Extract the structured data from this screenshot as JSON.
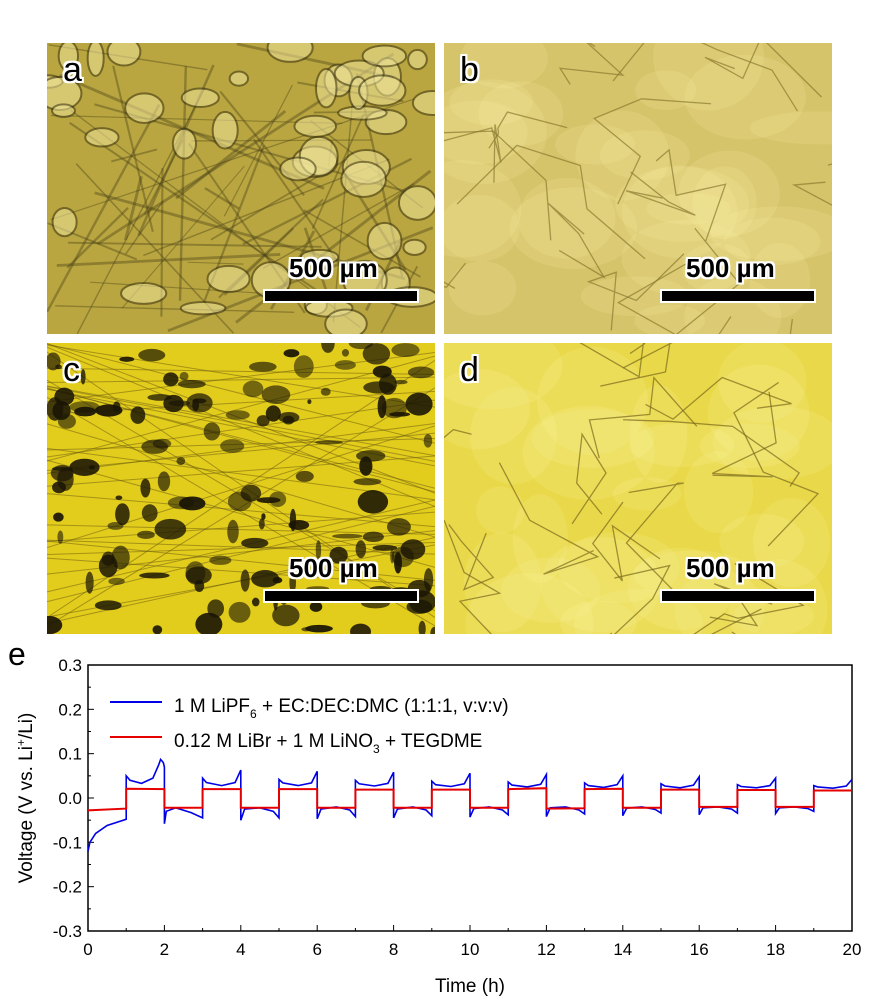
{
  "panels": [
    {
      "label": "a",
      "scale_bar": "500 µm",
      "tone": "#b9a640",
      "spot": "#3a3312",
      "style": "mottled"
    },
    {
      "label": "b",
      "scale_bar": "500 µm",
      "tone": "#d6c46a",
      "spot": "#8a7a30",
      "style": "grains"
    },
    {
      "label": "c",
      "scale_bar": "500 µm",
      "tone": "#e2cc1c",
      "spot": "#1a1505",
      "style": "pitted"
    },
    {
      "label": "d",
      "scale_bar": "500 µm",
      "tone": "#e9d94a",
      "spot": "#7a6a1c",
      "style": "grains"
    }
  ],
  "chart_label": "e",
  "chart_data": {
    "type": "line",
    "xlabel": "Time (h)",
    "ylabel": "Voltage (V vs. Li+/Li)",
    "xlim": [
      0,
      20
    ],
    "ylim": [
      -0.3,
      0.3
    ],
    "xticks": [
      "0",
      "2",
      "4",
      "6",
      "8",
      "10",
      "12",
      "14",
      "16",
      "18",
      "20"
    ],
    "yticks": [
      "-0.3",
      "-0.2",
      "-0.1",
      "0.0",
      "0.1",
      "0.2",
      "0.3"
    ],
    "grid": false,
    "legend_position": "top-left",
    "series": [
      {
        "name": "1 M LiPF6 + EC:DEC:DMC (1:1:1, v:v:v)",
        "color": "#0000e6",
        "points": [
          [
            0,
            -0.12
          ],
          [
            0.05,
            -0.1
          ],
          [
            0.2,
            -0.08
          ],
          [
            0.5,
            -0.062
          ],
          [
            1,
            -0.048
          ],
          [
            1,
            0.05
          ],
          [
            1.1,
            0.04
          ],
          [
            1.4,
            0.033
          ],
          [
            1.7,
            0.045
          ],
          [
            1.85,
            0.075
          ],
          [
            1.9,
            0.087
          ],
          [
            1.97,
            0.08
          ],
          [
            2,
            0.07
          ],
          [
            2,
            -0.058
          ],
          [
            2.05,
            -0.03
          ],
          [
            2.3,
            -0.022
          ],
          [
            2.7,
            -0.033
          ],
          [
            3,
            -0.045
          ],
          [
            3,
            0.045
          ],
          [
            3.1,
            0.035
          ],
          [
            3.5,
            0.028
          ],
          [
            3.85,
            0.035
          ],
          [
            4,
            0.063
          ],
          [
            4,
            -0.05
          ],
          [
            4.1,
            -0.025
          ],
          [
            4.5,
            -0.022
          ],
          [
            4.85,
            -0.03
          ],
          [
            5,
            -0.045
          ],
          [
            5,
            0.042
          ],
          [
            5.1,
            0.034
          ],
          [
            5.5,
            0.028
          ],
          [
            5.85,
            0.034
          ],
          [
            6,
            0.06
          ],
          [
            6,
            -0.047
          ],
          [
            6.1,
            -0.025
          ],
          [
            6.5,
            -0.02
          ],
          [
            6.85,
            -0.027
          ],
          [
            7,
            -0.042
          ],
          [
            7,
            0.04
          ],
          [
            7.1,
            0.032
          ],
          [
            7.5,
            0.027
          ],
          [
            7.85,
            0.033
          ],
          [
            8,
            0.058
          ],
          [
            8,
            -0.045
          ],
          [
            8.1,
            -0.025
          ],
          [
            8.5,
            -0.02
          ],
          [
            8.85,
            -0.027
          ],
          [
            9,
            -0.04
          ],
          [
            9,
            0.038
          ],
          [
            9.1,
            0.03
          ],
          [
            9.5,
            0.026
          ],
          [
            9.85,
            0.032
          ],
          [
            10,
            0.056
          ],
          [
            10,
            -0.043
          ],
          [
            10.1,
            -0.024
          ],
          [
            10.5,
            -0.02
          ],
          [
            10.85,
            -0.027
          ],
          [
            11,
            -0.038
          ],
          [
            11,
            0.036
          ],
          [
            11.1,
            0.029
          ],
          [
            11.5,
            0.025
          ],
          [
            11.85,
            0.031
          ],
          [
            12,
            0.053
          ],
          [
            12,
            -0.042
          ],
          [
            12.1,
            -0.022
          ],
          [
            12.5,
            -0.02
          ],
          [
            12.85,
            -0.027
          ],
          [
            13,
            -0.036
          ],
          [
            13,
            0.034
          ],
          [
            13.1,
            0.028
          ],
          [
            13.5,
            0.024
          ],
          [
            13.85,
            0.03
          ],
          [
            14,
            0.05
          ],
          [
            14,
            -0.04
          ],
          [
            14.1,
            -0.023
          ],
          [
            14.5,
            -0.02
          ],
          [
            14.85,
            -0.026
          ],
          [
            15,
            -0.034
          ],
          [
            15,
            0.032
          ],
          [
            15.1,
            0.027
          ],
          [
            15.5,
            0.023
          ],
          [
            15.85,
            0.029
          ],
          [
            16,
            0.048
          ],
          [
            16,
            -0.038
          ],
          [
            16.1,
            -0.022
          ],
          [
            16.5,
            -0.02
          ],
          [
            16.85,
            -0.025
          ],
          [
            17,
            -0.034
          ],
          [
            17,
            0.03
          ],
          [
            17.1,
            0.026
          ],
          [
            17.5,
            0.023
          ],
          [
            17.85,
            0.028
          ],
          [
            18,
            0.045
          ],
          [
            18,
            -0.035
          ],
          [
            18.1,
            -0.022
          ],
          [
            18.5,
            -0.02
          ],
          [
            18.85,
            -0.024
          ],
          [
            19,
            -0.03
          ],
          [
            19,
            0.028
          ],
          [
            19.1,
            0.025
          ],
          [
            19.5,
            0.022
          ],
          [
            19.85,
            0.027
          ],
          [
            20,
            0.042
          ]
        ]
      },
      {
        "name": "0.12 M LiBr + 1 M LiNO3 + TEGDME",
        "color": "#e60000",
        "points": [
          [
            0,
            -0.028
          ],
          [
            1,
            -0.024
          ],
          [
            1,
            0.021
          ],
          [
            2,
            0.02
          ],
          [
            2,
            -0.022
          ],
          [
            3,
            -0.022
          ],
          [
            3,
            0.02
          ],
          [
            4,
            0.02
          ],
          [
            4,
            -0.022
          ],
          [
            5,
            -0.022
          ],
          [
            5,
            0.02
          ],
          [
            6,
            0.02
          ],
          [
            6,
            -0.022
          ],
          [
            7,
            -0.022
          ],
          [
            7,
            0.019
          ],
          [
            8,
            0.019
          ],
          [
            8,
            -0.022
          ],
          [
            9,
            -0.022
          ],
          [
            9,
            0.019
          ],
          [
            10,
            0.019
          ],
          [
            10,
            -0.022
          ],
          [
            11,
            -0.022
          ],
          [
            11,
            0.02
          ],
          [
            12,
            0.022
          ],
          [
            12,
            -0.024
          ],
          [
            13,
            -0.023
          ],
          [
            13,
            0.02
          ],
          [
            14,
            0.021
          ],
          [
            14,
            -0.022
          ],
          [
            15,
            -0.022
          ],
          [
            15,
            0.019
          ],
          [
            16,
            0.019
          ],
          [
            16,
            -0.02
          ],
          [
            17,
            -0.02
          ],
          [
            17,
            0.018
          ],
          [
            18,
            0.018
          ],
          [
            18,
            -0.02
          ],
          [
            19,
            -0.02
          ],
          [
            19,
            0.017
          ],
          [
            20,
            0.017
          ]
        ]
      }
    ],
    "legend": [
      {
        "main": "1 M LiPF",
        "sub": "6",
        "rest": " + EC:DEC:DMC (1:1:1, v:v:v)"
      },
      {
        "main": "0.12 M LiBr + 1 M LiNO",
        "sub": "3",
        "rest": " + TEGDME"
      }
    ],
    "ylabel_parts": {
      "pre": "Voltage (V vs. Li",
      "sup": "+",
      "post": "/Li)"
    }
  }
}
